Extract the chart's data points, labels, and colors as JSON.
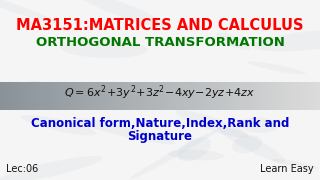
{
  "title_line1": "MA3151:MATRICES AND CALCULUS",
  "title_line1_color": "#ff0000",
  "title_line2": "ORTHOGONAL TRANSFORMATION",
  "title_line2_color": "#007700",
  "equation": "$Q = 6x^2+3y^2+3z^2-4xy-2yz+4zx$",
  "equation_color": "#111111",
  "subtitle_line1": "Canonical form,Nature,Index,Rank and",
  "subtitle_line2": "Signature",
  "subtitle_color": "#0000cc",
  "bottom_left": "Lec:06",
  "bottom_right": "Learn Easy",
  "bottom_color": "#111111",
  "bg_color": "#f5f5f5",
  "eq_band_left_color": "#8a9298",
  "eq_band_right_color": "#dcdcdc"
}
